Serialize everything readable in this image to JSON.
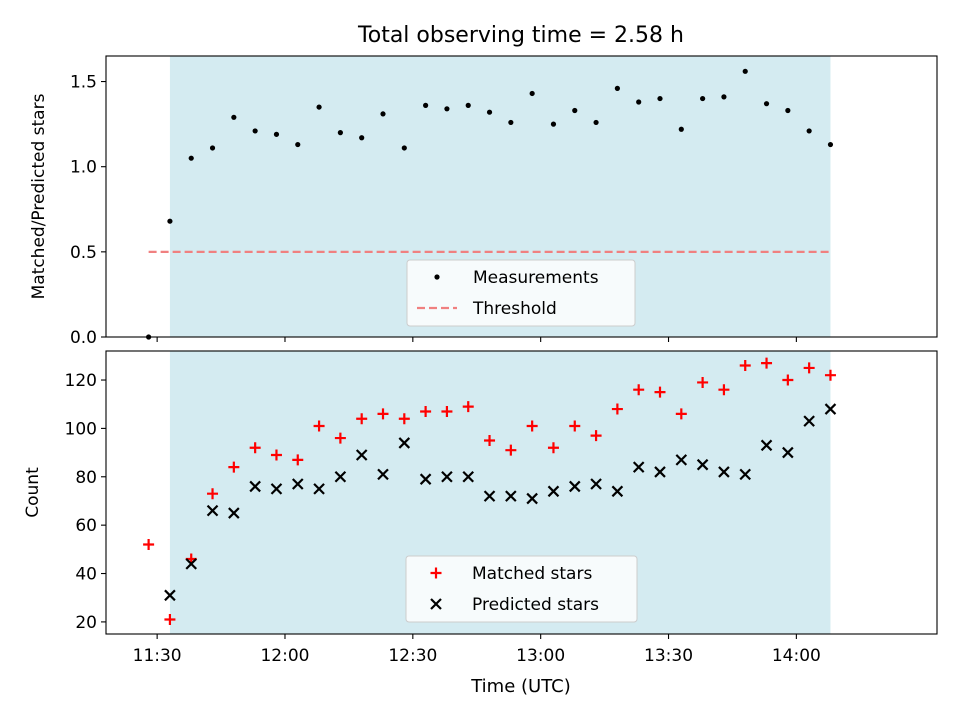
{
  "figure": {
    "title": "Total observing time = 2.58 h",
    "xlabel": "Time (UTC)",
    "xticks": [
      "11:30",
      "12:00",
      "12:30",
      "13:00",
      "13:30",
      "14:00"
    ],
    "shade_color": "#d4ebf1"
  },
  "chart_data": [
    {
      "type": "scatter",
      "ylabel": "Matched/Predicted stars",
      "ylim": [
        0,
        1.65
      ],
      "yticks": [
        0.0,
        0.5,
        1.0,
        1.5
      ],
      "yticklabels": [
        "0.0",
        "0.5",
        "1.0",
        "1.5"
      ],
      "grid": false,
      "legend_position": "lower center",
      "shaded_interval": [
        "11:33",
        "14:08"
      ],
      "series": [
        {
          "name": "Measurements",
          "kind": "scatter",
          "marker": "dot",
          "color": "#000000",
          "x": [
            "11:28",
            "11:33",
            "11:38",
            "11:43",
            "11:48",
            "11:53",
            "11:58",
            "12:03",
            "12:08",
            "12:13",
            "12:18",
            "12:23",
            "12:28",
            "12:33",
            "12:38",
            "12:43",
            "12:48",
            "12:53",
            "12:58",
            "13:03",
            "13:08",
            "13:13",
            "13:18",
            "13:23",
            "13:28",
            "13:33",
            "13:38",
            "13:43",
            "13:48",
            "13:53",
            "13:58",
            "14:03",
            "14:08"
          ],
          "y": [
            0.0,
            0.68,
            1.05,
            1.11,
            1.29,
            1.21,
            1.19,
            1.13,
            1.35,
            1.2,
            1.17,
            1.31,
            1.11,
            1.36,
            1.34,
            1.36,
            1.32,
            1.26,
            1.43,
            1.25,
            1.33,
            1.26,
            1.46,
            1.38,
            1.4,
            1.22,
            1.4,
            1.41,
            1.56,
            1.37,
            1.33,
            1.21,
            1.13
          ]
        },
        {
          "name": "Threshold",
          "kind": "line",
          "style": "dashed",
          "color": "#f08080",
          "x": [
            "11:28",
            "14:08"
          ],
          "y": [
            0.5,
            0.5
          ]
        }
      ]
    },
    {
      "type": "scatter",
      "ylabel": "Count",
      "ylim": [
        15,
        132
      ],
      "yticks": [
        20,
        40,
        60,
        80,
        100,
        120
      ],
      "yticklabels": [
        "20",
        "40",
        "60",
        "80",
        "100",
        "120"
      ],
      "grid": false,
      "legend_position": "lower center",
      "shaded_interval": [
        "11:33",
        "14:08"
      ],
      "series": [
        {
          "name": "Matched stars",
          "marker": "plus",
          "color": "#ff0000",
          "x": [
            "11:28",
            "11:33",
            "11:38",
            "11:43",
            "11:48",
            "11:53",
            "11:58",
            "12:03",
            "12:08",
            "12:13",
            "12:18",
            "12:23",
            "12:28",
            "12:33",
            "12:38",
            "12:43",
            "12:48",
            "12:53",
            "12:58",
            "13:03",
            "13:08",
            "13:13",
            "13:18",
            "13:23",
            "13:28",
            "13:33",
            "13:38",
            "13:43",
            "13:48",
            "13:53",
            "13:58",
            "14:03",
            "14:08"
          ],
          "y": [
            52,
            21,
            46,
            73,
            84,
            92,
            89,
            87,
            101,
            96,
            104,
            106,
            104,
            107,
            107,
            109,
            95,
            91,
            101,
            92,
            101,
            97,
            108,
            116,
            115,
            106,
            119,
            116,
            126,
            127,
            120,
            125,
            122
          ]
        },
        {
          "name": "Predicted stars",
          "marker": "x",
          "color": "#000000",
          "x": [
            "11:33",
            "11:38",
            "11:43",
            "11:48",
            "11:53",
            "11:58",
            "12:03",
            "12:08",
            "12:13",
            "12:18",
            "12:23",
            "12:28",
            "12:33",
            "12:38",
            "12:43",
            "12:48",
            "12:53",
            "12:58",
            "13:03",
            "13:08",
            "13:13",
            "13:18",
            "13:23",
            "13:28",
            "13:33",
            "13:38",
            "13:43",
            "13:48",
            "13:53",
            "13:58",
            "14:03",
            "14:08"
          ],
          "y": [
            31,
            44,
            66,
            65,
            76,
            75,
            77,
            75,
            80,
            89,
            81,
            94,
            79,
            80,
            80,
            72,
            72,
            71,
            74,
            76,
            77,
            74,
            84,
            82,
            87,
            85,
            82,
            81,
            93,
            90,
            103,
            108
          ]
        }
      ]
    }
  ]
}
